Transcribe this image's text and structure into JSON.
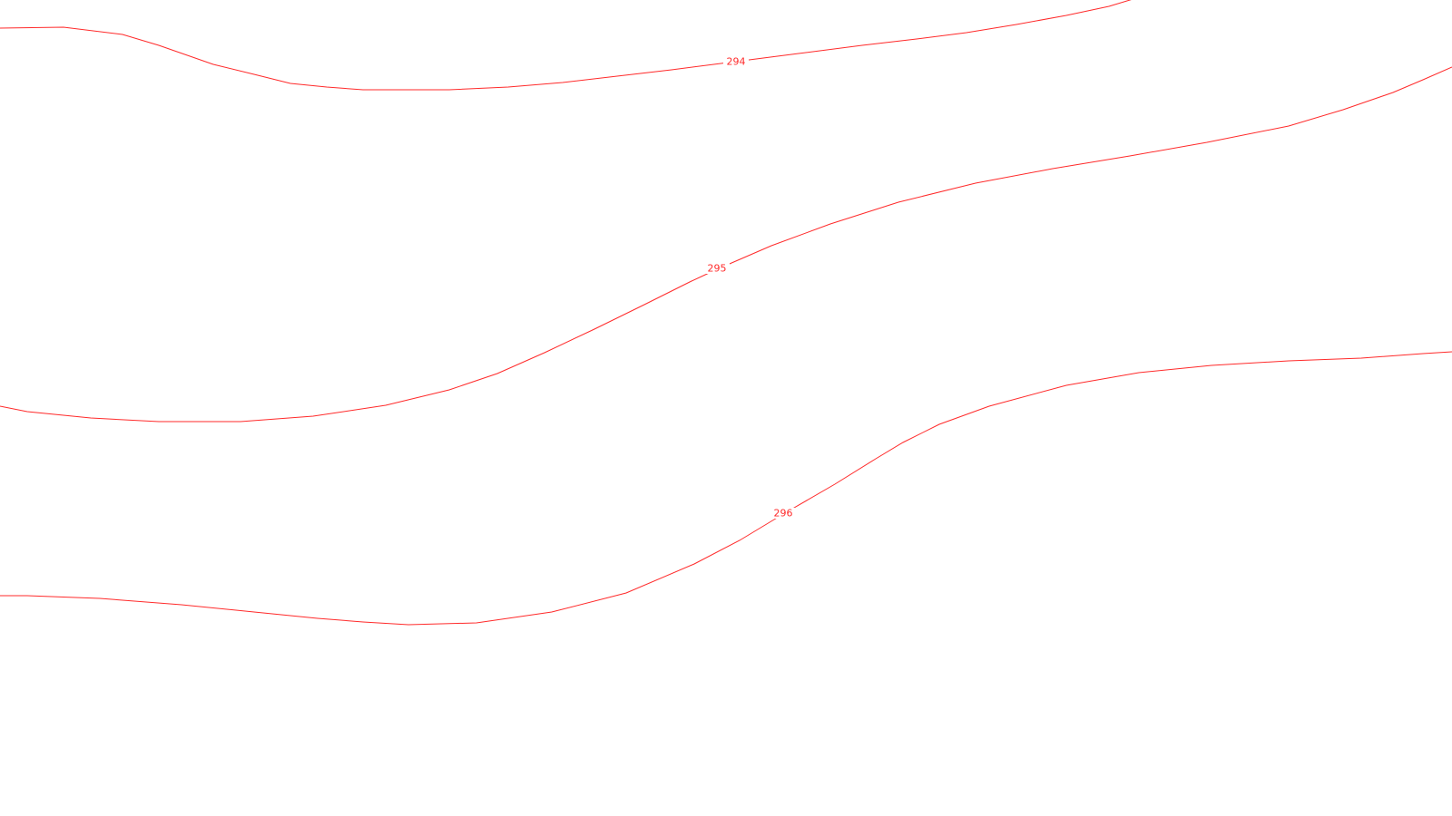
{
  "map": {
    "line_color": "#ff2a2a",
    "background_color": "#ffffff",
    "contours": [
      {
        "elevation": "294"
      },
      {
        "elevation": "295"
      },
      {
        "elevation": "296"
      }
    ]
  }
}
